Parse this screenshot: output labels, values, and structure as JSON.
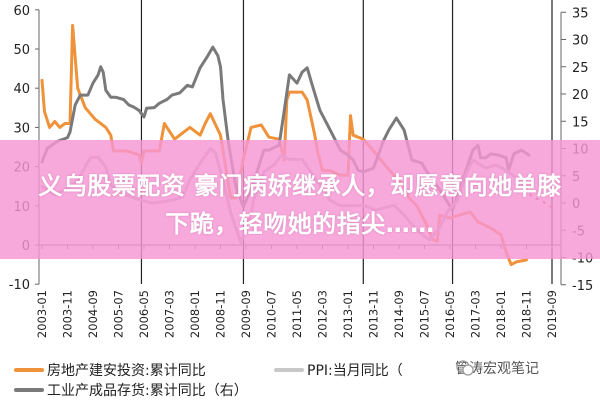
{
  "chart_data": {
    "type": "line",
    "title": "",
    "xlabel": "",
    "ylabel_left": "",
    "ylabel_right": "",
    "ylim_left": [
      -10,
      60
    ],
    "yticks_left": [
      -10,
      0,
      10,
      20,
      30,
      40,
      50,
      60
    ],
    "ylim_right": [
      -15,
      35
    ],
    "yticks_right": [
      -15,
      -10,
      -5,
      0,
      5,
      10,
      15,
      20,
      25,
      30,
      35
    ],
    "xlim": [
      "2003-01",
      "2019-09"
    ],
    "xticks": [
      "2003-01",
      "2003-11",
      "2004-09",
      "2005-07",
      "2006-05",
      "2007-03",
      "2008-01",
      "2008-11",
      "2009-09",
      "2010-07",
      "2011-05",
      "2012-03",
      "2013-01",
      "2013-11",
      "2014-09",
      "2015-07",
      "2016-05",
      "2017-03",
      "2018-01",
      "2018-11",
      "2019-09"
    ],
    "vertical_markers": [
      "2006-04",
      "2009-08",
      "2013-07",
      "2016-06",
      "2019-09"
    ],
    "grid": false,
    "legend_position": "bottom",
    "colors": {
      "investment": "#f0923a",
      "inventory": "#7a7a7a",
      "ppi": "#c4b4c4",
      "ppi_forecast": "#c0504d",
      "axis": "#555555",
      "banner": "#f796d4"
    },
    "series": [
      {
        "name": "房地产建安投资:累计同比",
        "axis": "left",
        "color": "#f0923a",
        "points": [
          [
            "2003-01",
            42
          ],
          [
            "2003-02",
            34
          ],
          [
            "2003-04",
            30
          ],
          [
            "2003-06",
            31.5
          ],
          [
            "2003-08",
            30
          ],
          [
            "2003-10",
            31
          ],
          [
            "2003-12",
            31
          ],
          [
            "2004-01",
            56
          ],
          [
            "2004-03",
            40
          ],
          [
            "2004-06",
            35
          ],
          [
            "2004-10",
            32
          ],
          [
            "2004-12",
            31
          ],
          [
            "2005-02",
            30
          ],
          [
            "2005-04",
            28
          ],
          [
            "2005-05",
            24
          ],
          [
            "2005-10",
            24
          ],
          [
            "2006-03",
            23
          ],
          [
            "2006-04",
            21
          ],
          [
            "2006-05",
            24
          ],
          [
            "2006-11",
            24
          ],
          [
            "2007-01",
            31
          ],
          [
            "2007-05",
            27
          ],
          [
            "2007-07",
            28
          ],
          [
            "2007-11",
            30
          ],
          [
            "2008-03",
            28
          ],
          [
            "2008-05",
            31
          ],
          [
            "2008-07",
            33.5
          ],
          [
            "2008-11",
            28
          ],
          [
            "2009-01",
            20
          ],
          [
            "2009-03",
            12
          ],
          [
            "2009-05",
            12
          ],
          [
            "2009-08",
            22
          ],
          [
            "2009-11",
            30
          ],
          [
            "2010-03",
            30.6
          ],
          [
            "2010-06",
            27.5
          ],
          [
            "2010-10",
            27
          ],
          [
            "2010-12",
            21.7
          ],
          [
            "2011-01",
            37
          ],
          [
            "2011-02",
            39
          ],
          [
            "2011-05",
            39
          ],
          [
            "2011-07",
            39
          ],
          [
            "2011-09",
            37
          ],
          [
            "2011-12",
            28
          ],
          [
            "2012-01",
            24
          ],
          [
            "2012-03",
            19
          ],
          [
            "2012-06",
            19
          ],
          [
            "2012-10",
            17.8
          ],
          [
            "2013-01",
            17.8
          ],
          [
            "2013-02",
            33
          ],
          [
            "2013-03",
            28
          ],
          [
            "2013-07",
            27
          ],
          [
            "2013-11",
            24
          ],
          [
            "2014-04",
            20
          ],
          [
            "2014-11",
            15
          ],
          [
            "2015-01",
            12
          ],
          [
            "2015-04",
            10
          ],
          [
            "2015-08",
            5
          ],
          [
            "2015-10",
            1.5
          ],
          [
            "2015-12",
            1
          ],
          [
            "2016-01",
            7.6
          ],
          [
            "2016-05",
            6.9
          ],
          [
            "2016-08",
            7.5
          ],
          [
            "2017-01",
            8.4
          ],
          [
            "2017-04",
            5.9
          ],
          [
            "2017-09",
            4.3
          ],
          [
            "2018-01",
            2.6
          ],
          [
            "2018-03",
            -1.8
          ],
          [
            "2018-05",
            -5
          ],
          [
            "2018-07",
            -4.3
          ],
          [
            "2018-11",
            -3.8
          ]
        ]
      },
      {
        "name": "工业产成品存货:累计同比（右）",
        "axis": "right",
        "color": "#7a7a7a",
        "points": [
          [
            "2003-01",
            7.5
          ],
          [
            "2003-03",
            10
          ],
          [
            "2003-07",
            11.3
          ],
          [
            "2003-11",
            12
          ],
          [
            "2003-12",
            13
          ],
          [
            "2004-02",
            18
          ],
          [
            "2004-04",
            19.8
          ],
          [
            "2004-07",
            19.8
          ],
          [
            "2004-09",
            22
          ],
          [
            "2004-11",
            23.5
          ],
          [
            "2004-12",
            25
          ],
          [
            "2005-01",
            24
          ],
          [
            "2005-02",
            20.7
          ],
          [
            "2005-04",
            19.4
          ],
          [
            "2005-06",
            19.4
          ],
          [
            "2005-09",
            19
          ],
          [
            "2005-11",
            18
          ],
          [
            "2006-01",
            17.6
          ],
          [
            "2006-03",
            17
          ],
          [
            "2006-05",
            15.8
          ],
          [
            "2006-06",
            17.4
          ],
          [
            "2006-09",
            17.5
          ],
          [
            "2006-11",
            18.3
          ],
          [
            "2007-02",
            19
          ],
          [
            "2007-04",
            19.8
          ],
          [
            "2007-07",
            20.2
          ],
          [
            "2007-10",
            21.6
          ],
          [
            "2007-12",
            21.3
          ],
          [
            "2008-03",
            24.8
          ],
          [
            "2008-06",
            27
          ],
          [
            "2008-08",
            28.6
          ],
          [
            "2008-10",
            27
          ],
          [
            "2008-11",
            25
          ],
          [
            "2008-12",
            19
          ],
          [
            "2009-02",
            11.5
          ],
          [
            "2009-05",
            3
          ],
          [
            "2009-08",
            -0.7
          ],
          [
            "2009-12",
            3.7
          ],
          [
            "2010-04",
            9.7
          ],
          [
            "2010-06",
            9.7
          ],
          [
            "2010-10",
            10.6
          ],
          [
            "2010-12",
            17
          ],
          [
            "2011-02",
            23.5
          ],
          [
            "2011-05",
            22
          ],
          [
            "2011-07",
            24
          ],
          [
            "2011-09",
            24.8
          ],
          [
            "2011-11",
            21.6
          ],
          [
            "2012-02",
            17
          ],
          [
            "2012-05",
            14.3
          ],
          [
            "2012-07",
            12.5
          ],
          [
            "2012-10",
            9.7
          ],
          [
            "2013-01",
            8.8
          ],
          [
            "2013-03",
            7.9
          ],
          [
            "2013-05",
            6
          ],
          [
            "2013-07",
            5.7
          ],
          [
            "2013-11",
            6.4
          ],
          [
            "2014-03",
            11.5
          ],
          [
            "2014-05",
            13.4
          ],
          [
            "2014-08",
            15.6
          ],
          [
            "2014-11",
            13.4
          ],
          [
            "2015-02",
            7.9
          ],
          [
            "2015-06",
            7.3
          ],
          [
            "2015-08",
            5.7
          ],
          [
            "2016-01",
            2.4
          ],
          [
            "2016-06",
            -1.3
          ],
          [
            "2016-10",
            4.2
          ],
          [
            "2017-02",
            9.7
          ],
          [
            "2017-04",
            10.6
          ],
          [
            "2017-05",
            8.3
          ],
          [
            "2017-07",
            8.3
          ],
          [
            "2017-09",
            9
          ],
          [
            "2017-12",
            8.8
          ],
          [
            "2018-03",
            8.3
          ],
          [
            "2018-04",
            6
          ],
          [
            "2018-06",
            9
          ],
          [
            "2018-09",
            9.7
          ],
          [
            "2018-12",
            8.8
          ]
        ]
      },
      {
        "name": "PPI:当月同比（",
        "axis": "right",
        "color": "#c4b4c4",
        "points": [
          [
            "2003-01",
            3
          ],
          [
            "2003-06",
            1.5
          ],
          [
            "2003-12",
            3
          ],
          [
            "2004-03",
            4.2
          ],
          [
            "2004-08",
            8.3
          ],
          [
            "2004-11",
            8.4
          ],
          [
            "2005-02",
            6.6
          ],
          [
            "2005-04",
            3.3
          ],
          [
            "2005-08",
            1.8
          ],
          [
            "2005-12",
            1.1
          ],
          [
            "2006-04",
            0.5
          ],
          [
            "2006-08",
            0
          ],
          [
            "2006-12",
            0.2
          ],
          [
            "2007-04",
            0.5
          ],
          [
            "2007-08",
            1.1
          ],
          [
            "2007-11",
            4.2
          ],
          [
            "2008-03",
            7.3
          ],
          [
            "2008-07",
            10
          ],
          [
            "2008-09",
            9.2
          ],
          [
            "2008-12",
            4.2
          ],
          [
            "2009-03",
            -1.8
          ],
          [
            "2009-07",
            -7.3
          ],
          [
            "2009-11",
            -2
          ],
          [
            "2009-12",
            0.5
          ],
          [
            "2010-04",
            5.7
          ],
          [
            "2010-08",
            7
          ],
          [
            "2010-11",
            8.8
          ],
          [
            "2011-02",
            8
          ],
          [
            "2011-07",
            8
          ],
          [
            "2011-10",
            6
          ],
          [
            "2012-02",
            3.3
          ],
          [
            "2012-06",
            0.5
          ],
          [
            "2012-10",
            -0.5
          ],
          [
            "2013-02",
            -0.5
          ],
          [
            "2013-07",
            -0.4
          ],
          [
            "2013-12",
            -1.3
          ],
          [
            "2014-07",
            -0.4
          ],
          [
            "2014-11",
            -2.2
          ],
          [
            "2015-04",
            -5
          ],
          [
            "2015-09",
            -6.8
          ],
          [
            "2016-01",
            -4.5
          ],
          [
            "2016-04",
            -1.6
          ],
          [
            "2016-08",
            0.5
          ],
          [
            "2016-11",
            5
          ],
          [
            "2017-02",
            7.9
          ],
          [
            "2017-07",
            6.4
          ],
          [
            "2017-11",
            7
          ],
          [
            "2018-03",
            6
          ],
          [
            "2018-07",
            4.6
          ],
          [
            "2018-11",
            2.8
          ]
        ]
      },
      {
        "axis": "right",
        "color": "#c0504d",
        "style": "dotted",
        "points": [
          [
            "2018-11",
            2.8
          ],
          [
            "2019-01",
            1.1
          ],
          [
            "2019-05",
            0.5
          ],
          [
            "2019-07",
            -0.4
          ],
          [
            "2019-09",
            -0.7
          ]
        ]
      }
    ]
  },
  "legend": {
    "investment": "房地产建安投资:累计同比",
    "inventory": "工业产成品存货:累计同比（右）",
    "ppi": "PPI:当月同比（"
  },
  "watermark": {
    "text": "管涛宏观笔记",
    "icon": "wechat-icon"
  },
  "banner": {
    "line1": "义乌股票配资 豪门病娇继承人，却愿意向她单膝",
    "line2": "下跪，轻吻她的指尖……"
  }
}
